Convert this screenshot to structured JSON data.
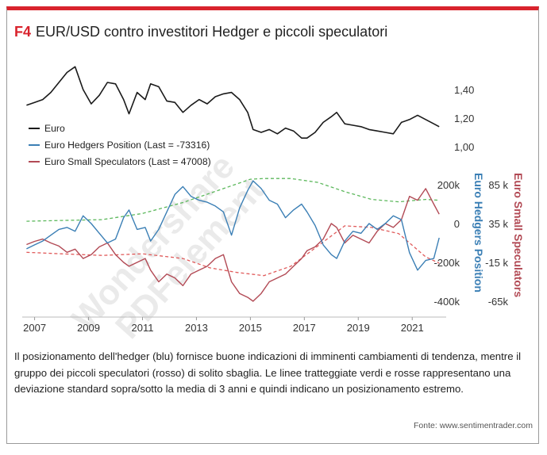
{
  "figure": {
    "tag": "F4",
    "title": "EUR/USD contro investitori Hedger e piccoli speculatori",
    "caption": "Il posizionamento dell'hedger (blu) fornisce buone indicazioni di imminenti cambiamenti di tendenza, mentre il gruppo dei piccoli speculatori (rosso) di solito sbaglia. Le linee tratteggiate verdi e rosse rappresentano una deviazione standard sopra/sotto la media di 3 anni e quindi indicano un posizionamento estremo.",
    "source": "Fonte: www.sentimentrader.com",
    "watermark": [
      "Wondershare",
      "PDFelement"
    ]
  },
  "colors": {
    "euro": "#1a1a1a",
    "hedgers": "#3b7fb5",
    "speculators": "#b24a55",
    "band_upper": "#5cb85c",
    "band_lower": "#e05a5a",
    "accent": "#d9232d"
  },
  "chart_data": {
    "type": "line",
    "x_ticks": [
      "2007",
      "2009",
      "2011",
      "2013",
      "2015",
      "2017",
      "2019",
      "2021"
    ],
    "x_range": [
      2006.6,
      2022.2
    ],
    "legend_position": "top-left",
    "legend": [
      {
        "key": "euro",
        "label": "Euro"
      },
      {
        "key": "hedgers",
        "label": "Euro Hedgers Position (Last = -73316)"
      },
      {
        "key": "speculators",
        "label": "Euro Small Speculators (Last = 47008)"
      }
    ],
    "axes": {
      "euro": {
        "ticks": [
          "1,40",
          "1,20",
          "1,00"
        ],
        "tick_values": [
          1.4,
          1.2,
          1.0
        ]
      },
      "hedgers": {
        "label": "Euro Hedgers Position",
        "ticks": [
          "200k",
          "0",
          "-200k",
          "-400k"
        ],
        "tick_values": [
          200000,
          0,
          -200000,
          -400000
        ]
      },
      "speculators": {
        "label": "Euro Small Speculators",
        "ticks": [
          "85 k",
          "35 k",
          "-15 k",
          "-65k"
        ],
        "tick_values": [
          85000,
          35000,
          -15000,
          -65000
        ]
      }
    },
    "series": [
      {
        "key": "euro",
        "name": "Euro",
        "x": [
          2006.7,
          2007.0,
          2007.3,
          2007.6,
          2007.9,
          2008.2,
          2008.5,
          2008.8,
          2009.1,
          2009.4,
          2009.7,
          2010.0,
          2010.3,
          2010.5,
          2010.8,
          2011.1,
          2011.3,
          2011.6,
          2011.9,
          2012.2,
          2012.5,
          2012.8,
          2013.1,
          2013.4,
          2013.7,
          2014.0,
          2014.3,
          2014.6,
          2014.9,
          2015.1,
          2015.4,
          2015.7,
          2016.0,
          2016.3,
          2016.6,
          2016.9,
          2017.1,
          2017.4,
          2017.7,
          2018.0,
          2018.2,
          2018.5,
          2018.8,
          2019.1,
          2019.4,
          2019.7,
          2020.0,
          2020.3,
          2020.6,
          2020.9,
          2021.2,
          2021.5,
          2021.8,
          2022.0
        ],
        "values": [
          1.29,
          1.31,
          1.33,
          1.38,
          1.45,
          1.52,
          1.56,
          1.4,
          1.3,
          1.36,
          1.45,
          1.44,
          1.33,
          1.23,
          1.38,
          1.33,
          1.44,
          1.42,
          1.32,
          1.31,
          1.24,
          1.29,
          1.33,
          1.3,
          1.35,
          1.37,
          1.38,
          1.33,
          1.24,
          1.12,
          1.1,
          1.12,
          1.09,
          1.13,
          1.11,
          1.06,
          1.06,
          1.1,
          1.17,
          1.21,
          1.24,
          1.16,
          1.15,
          1.14,
          1.12,
          1.11,
          1.1,
          1.09,
          1.17,
          1.19,
          1.22,
          1.19,
          1.16,
          1.14
        ]
      },
      {
        "key": "hedgers",
        "name": "Euro Hedgers Position",
        "x": [
          2006.7,
          2007.0,
          2007.3,
          2007.6,
          2007.9,
          2008.2,
          2008.5,
          2008.8,
          2009.1,
          2009.4,
          2009.7,
          2010.0,
          2010.3,
          2010.5,
          2010.8,
          2011.1,
          2011.3,
          2011.6,
          2011.9,
          2012.2,
          2012.5,
          2012.8,
          2013.1,
          2013.4,
          2013.7,
          2014.0,
          2014.3,
          2014.6,
          2014.9,
          2015.1,
          2015.4,
          2015.7,
          2016.0,
          2016.3,
          2016.6,
          2016.9,
          2017.1,
          2017.4,
          2017.7,
          2018.0,
          2018.2,
          2018.5,
          2018.8,
          2019.1,
          2019.4,
          2019.7,
          2020.0,
          2020.3,
          2020.6,
          2020.9,
          2021.2,
          2021.5,
          2021.8,
          2022.0
        ],
        "values": [
          -130000,
          -110000,
          -90000,
          -60000,
          -30000,
          -20000,
          -40000,
          40000,
          0,
          -50000,
          -100000,
          -80000,
          30000,
          70000,
          -30000,
          -20000,
          -90000,
          -30000,
          60000,
          150000,
          190000,
          140000,
          120000,
          110000,
          90000,
          60000,
          -60000,
          80000,
          170000,
          220000,
          180000,
          120000,
          100000,
          30000,
          70000,
          100000,
          60000,
          -10000,
          -110000,
          -160000,
          -180000,
          -90000,
          -40000,
          -50000,
          0,
          -30000,
          0,
          40000,
          20000,
          -150000,
          -240000,
          -190000,
          -180000,
          -73316
        ]
      },
      {
        "key": "speculators",
        "name": "Euro Small Speculators",
        "x": [
          2006.7,
          2007.0,
          2007.3,
          2007.6,
          2007.9,
          2008.2,
          2008.5,
          2008.8,
          2009.1,
          2009.4,
          2009.7,
          2010.0,
          2010.3,
          2010.5,
          2010.8,
          2011.1,
          2011.3,
          2011.6,
          2011.9,
          2012.2,
          2012.5,
          2012.8,
          2013.1,
          2013.4,
          2013.7,
          2014.0,
          2014.3,
          2014.6,
          2014.9,
          2015.1,
          2015.4,
          2015.7,
          2016.0,
          2016.3,
          2016.6,
          2016.9,
          2017.1,
          2017.4,
          2017.7,
          2018.0,
          2018.2,
          2018.5,
          2018.8,
          2019.1,
          2019.4,
          2019.7,
          2020.0,
          2020.3,
          2020.6,
          2020.9,
          2021.2,
          2021.5,
          2021.8,
          2022.0
        ],
        "values": [
          8000,
          12000,
          15000,
          10000,
          6000,
          -2000,
          2000,
          -10000,
          -5000,
          5000,
          10000,
          -5000,
          -15000,
          -20000,
          -15000,
          -10000,
          -25000,
          -40000,
          -30000,
          -35000,
          -45000,
          -30000,
          -25000,
          -20000,
          -10000,
          -5000,
          -40000,
          -55000,
          -60000,
          -65000,
          -55000,
          -40000,
          -35000,
          -30000,
          -20000,
          -10000,
          0,
          5000,
          15000,
          35000,
          30000,
          10000,
          20000,
          15000,
          10000,
          25000,
          35000,
          30000,
          40000,
          70000,
          65000,
          80000,
          60000,
          47008
        ]
      },
      {
        "key": "band_upper",
        "x": [
          2006.7,
          2008.0,
          2009.5,
          2011.0,
          2012.5,
          2013.5,
          2014.5,
          2015.0,
          2015.5,
          2016.5,
          2017.5,
          2018.5,
          2019.5,
          2020.5,
          2021.5,
          2022.0
        ],
        "values": [
          38000,
          39000,
          40000,
          48000,
          62000,
          74000,
          86000,
          92000,
          93000,
          93000,
          88000,
          76000,
          66000,
          63000,
          66000,
          65000
        ]
      },
      {
        "key": "band_lower",
        "x": [
          2006.7,
          2008.0,
          2009.5,
          2011.0,
          2012.5,
          2013.5,
          2014.5,
          2015.5,
          2016.5,
          2017.5,
          2018.5,
          2019.5,
          2020.5,
          2021.5,
          2022.0
        ],
        "values": [
          -2000,
          -4000,
          -6000,
          -4000,
          -10000,
          -22000,
          -28000,
          -32000,
          -20000,
          6000,
          32000,
          30000,
          22000,
          -8000,
          -16000
        ]
      }
    ]
  }
}
